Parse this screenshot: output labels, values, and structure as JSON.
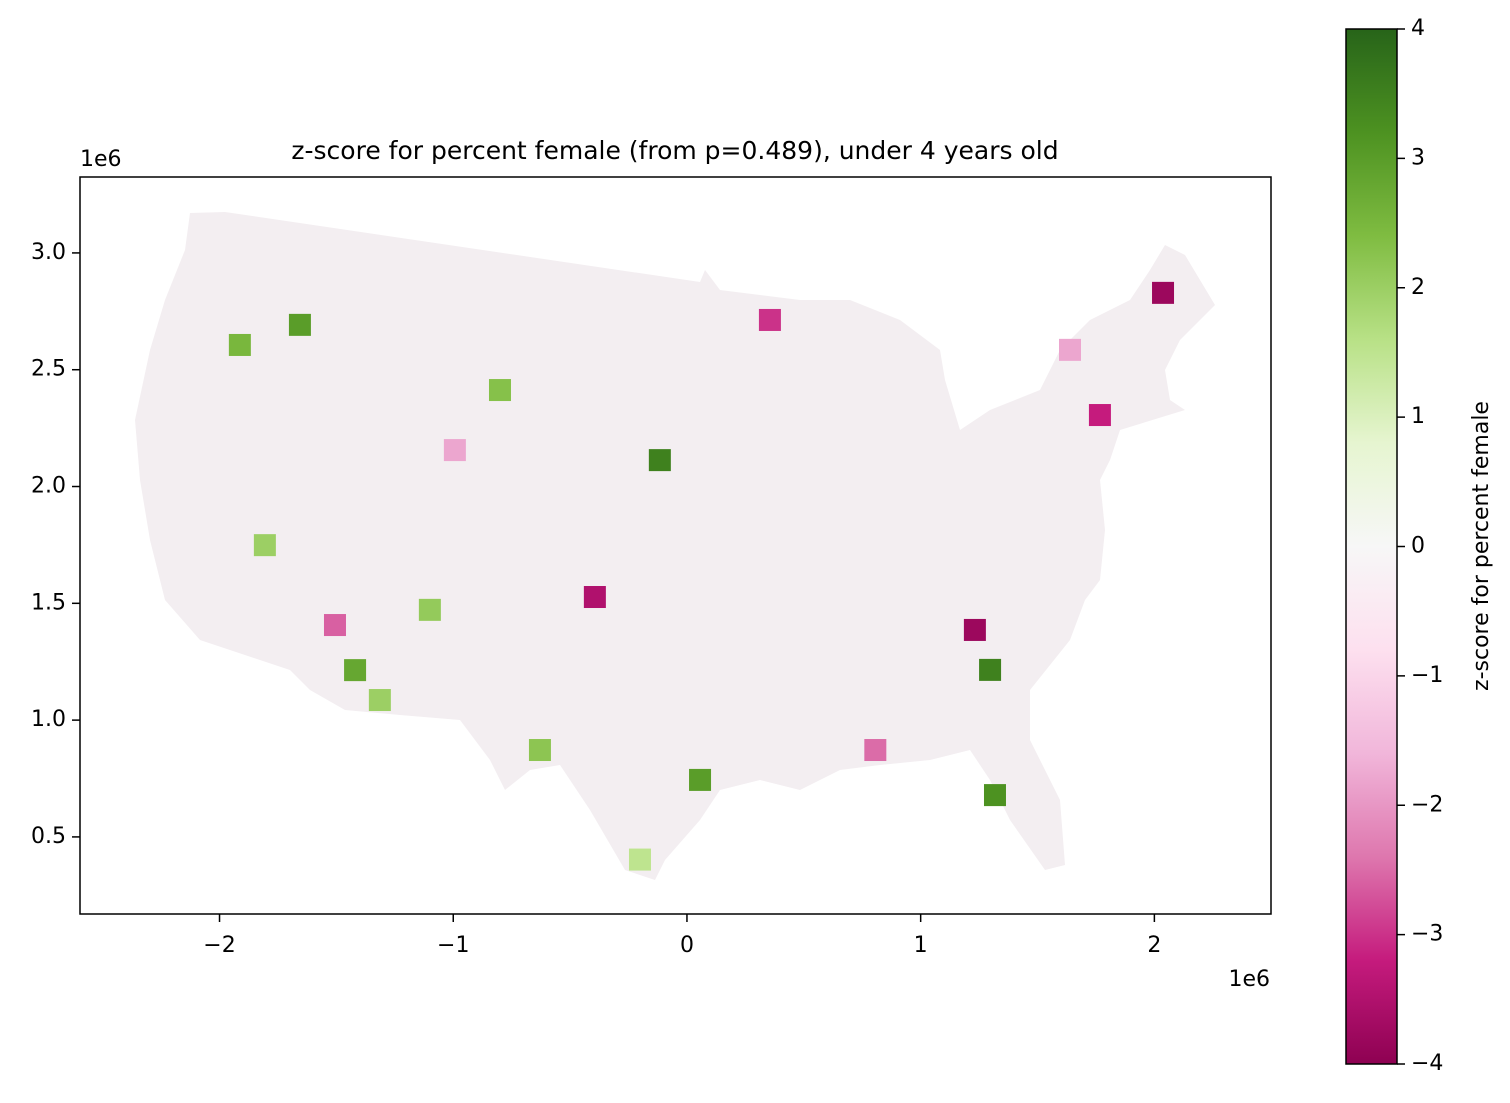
{
  "chart_data": {
    "type": "choropleth",
    "title": "z-score for percent female (from p=0.489), under 4 years old",
    "x_offset_label": "1e6",
    "y_offset_label": "1e6",
    "xlim": [
      -2597000,
      2499000
    ],
    "ylim": [
      170000,
      3325000
    ],
    "xticks": [
      {
        "value": -2000000,
        "label": "−2"
      },
      {
        "value": -1000000,
        "label": "−1"
      },
      {
        "value": 0,
        "label": "0"
      },
      {
        "value": 1000000,
        "label": "1"
      },
      {
        "value": 2000000,
        "label": "2"
      }
    ],
    "yticks": [
      {
        "value": 500000,
        "label": "0.5"
      },
      {
        "value": 1000000,
        "label": "1.0"
      },
      {
        "value": 1500000,
        "label": "1.5"
      },
      {
        "value": 2000000,
        "label": "2.0"
      },
      {
        "value": 2500000,
        "label": "2.5"
      },
      {
        "value": 3000000,
        "label": "3.0"
      }
    ],
    "colorbar_label": "z-score for percent female",
    "clim": [
      -4,
      4
    ],
    "cticks": [
      {
        "value": -4,
        "label": "−4"
      },
      {
        "value": -3,
        "label": "−3"
      },
      {
        "value": -2,
        "label": "−2"
      },
      {
        "value": -1,
        "label": "−1"
      },
      0,
      1,
      2,
      3,
      4
    ],
    "colormap": [
      "#8e0152",
      "#c51b7d",
      "#de77ae",
      "#f1b6da",
      "#fde0ef",
      "#f7f7f7",
      "#e6f5d0",
      "#b8e186",
      "#7fbc41",
      "#4d9221",
      "#276419"
    ],
    "regions": {
      "x": [
        2037000,
        -1656000,
        -1506000,
        -1420000,
        -1806000,
        -993000,
        -800000,
        -394000,
        355000,
        56000,
        1232000,
        1318000,
        806000,
        1767000,
        -1913000,
        -1314000,
        -629000,
        -1100000,
        1639000,
        -201000,
        1297000,
        -116000
      ],
      "y": [
        2829000,
        2692000,
        1407000,
        1214000,
        1749000,
        2156000,
        2413000,
        1527000,
        2713000,
        744000,
        1386000,
        679000,
        872000,
        2306000,
        2606000,
        1086000,
        872000,
        1472000,
        2585000,
        403000,
        1215000,
        2113000
      ],
      "values": [
        -3.8,
        3.0,
        -2.6,
        2.8,
        2.0,
        -1.8,
        2.3,
        -3.5,
        -3.0,
        3.0,
        -3.8,
        3.2,
        -2.5,
        -3.2,
        2.5,
        2.0,
        2.2,
        2.1,
        -1.8,
        1.5,
        3.5,
        3.5
      ]
    }
  }
}
